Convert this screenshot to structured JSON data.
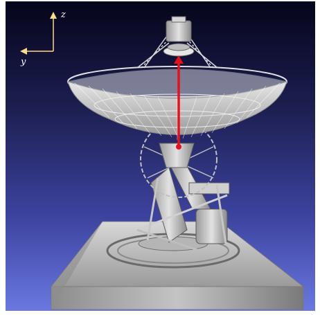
{
  "axes": {
    "vertical_label": "z",
    "horizontal_label": "y"
  },
  "colors": {
    "background_top": "#05051a",
    "background_bottom": "#6a78e0",
    "axis_color": "#ffd98a",
    "arrow_color": "#e8101a",
    "model_color": "#c8c8c8"
  }
}
